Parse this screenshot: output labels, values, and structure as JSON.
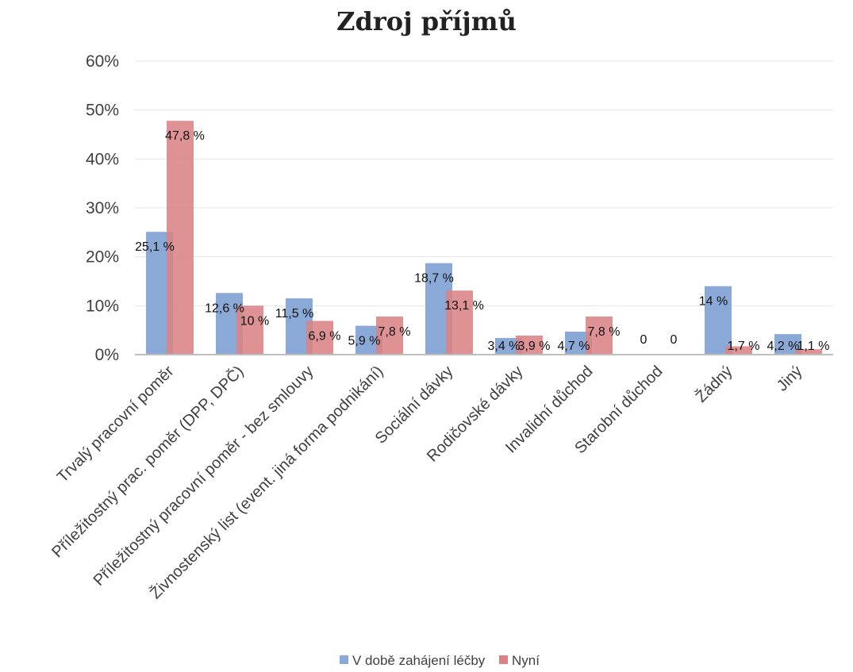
{
  "chart_data": {
    "type": "bar",
    "title": "Zdroj příjmů",
    "xlabel": "",
    "ylabel": "",
    "ylim": [
      0,
      60
    ],
    "y_ticks": [
      "0%",
      "10%",
      "20%",
      "30%",
      "40%",
      "50%",
      "60%"
    ],
    "grid": true,
    "legend_position": "bottom",
    "categories": [
      "Trvalý pracovní poměr",
      "Příležitostný prac. poměr (DPP, DPČ)",
      "Příležitostný pracovní poměr - bez smlouvy",
      "Živnostenský list (event. jiná forma podnikání)",
      "Sociální dávky",
      "Rodičovské dávky",
      "Invalidní důchod",
      "Starobní důchod",
      "Žádný",
      "Jiný"
    ],
    "series": [
      {
        "name": "V době zahájení léčby",
        "color": "#8AA9D6",
        "values": [
          25.1,
          12.6,
          11.5,
          5.9,
          18.7,
          3.4,
          4.7,
          0,
          14,
          4.2
        ],
        "labels": [
          "25,1 %",
          "12,6 %",
          "11,5 %",
          "5,9 %",
          "18,7 %",
          "3,4 %",
          "4,7 %",
          "0",
          "14 %",
          "4,2 %"
        ]
      },
      {
        "name": "Nyní",
        "color": "#D98385",
        "values": [
          47.8,
          10,
          6.9,
          7.8,
          13.1,
          3.9,
          7.8,
          0,
          1.7,
          1.1
        ],
        "labels": [
          "47,8 %",
          "10 %",
          "6,9 %",
          "7,8 %",
          "13,1 %",
          "3,9 %",
          "7,8 %",
          "0",
          "1,7 %",
          "1,1 %"
        ]
      }
    ]
  }
}
